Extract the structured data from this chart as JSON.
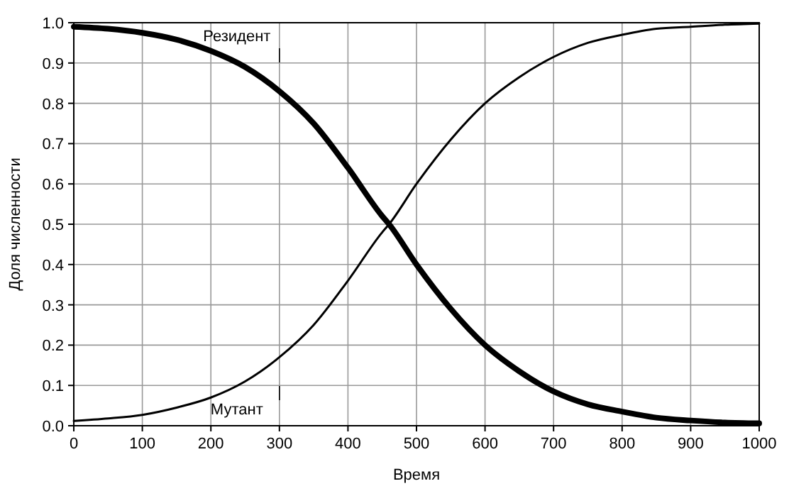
{
  "chart_data": {
    "type": "line",
    "xlabel": "Время",
    "ylabel": "Доля численности",
    "xlim": [
      0,
      1000
    ],
    "ylim": [
      0,
      1
    ],
    "xticks": [
      0,
      100,
      200,
      300,
      400,
      500,
      600,
      700,
      800,
      900,
      1000
    ],
    "yticks": [
      {
        "value": 0,
        "label": "0.0"
      },
      0.1,
      0.2,
      0.3,
      0.4,
      0.5,
      0.6,
      0.7,
      0.8,
      0.9,
      {
        "value": 1,
        "label": "1.0"
      }
    ],
    "grid": true,
    "line_style": "solid",
    "x": [
      0,
      50,
      100,
      150,
      200,
      250,
      300,
      350,
      400,
      450,
      460,
      500,
      550,
      600,
      650,
      700,
      750,
      800,
      850,
      900,
      950,
      1000
    ],
    "series": [
      {
        "name": "Резидент",
        "color": "#000000",
        "values": [
          0.99,
          0.985,
          0.975,
          0.958,
          0.93,
          0.89,
          0.83,
          0.75,
          0.64,
          0.52,
          0.5,
          0.4,
          0.29,
          0.2,
          0.135,
          0.085,
          0.053,
          0.035,
          0.02,
          0.013,
          0.008,
          0.006
        ]
      },
      {
        "name": "Мутант",
        "color": "#000000",
        "values": [
          0.012,
          0.018,
          0.027,
          0.045,
          0.07,
          0.11,
          0.17,
          0.25,
          0.36,
          0.48,
          0.5,
          0.6,
          0.71,
          0.8,
          0.865,
          0.915,
          0.95,
          0.97,
          0.985,
          0.99,
          0.995,
          0.998
        ]
      }
    ]
  }
}
